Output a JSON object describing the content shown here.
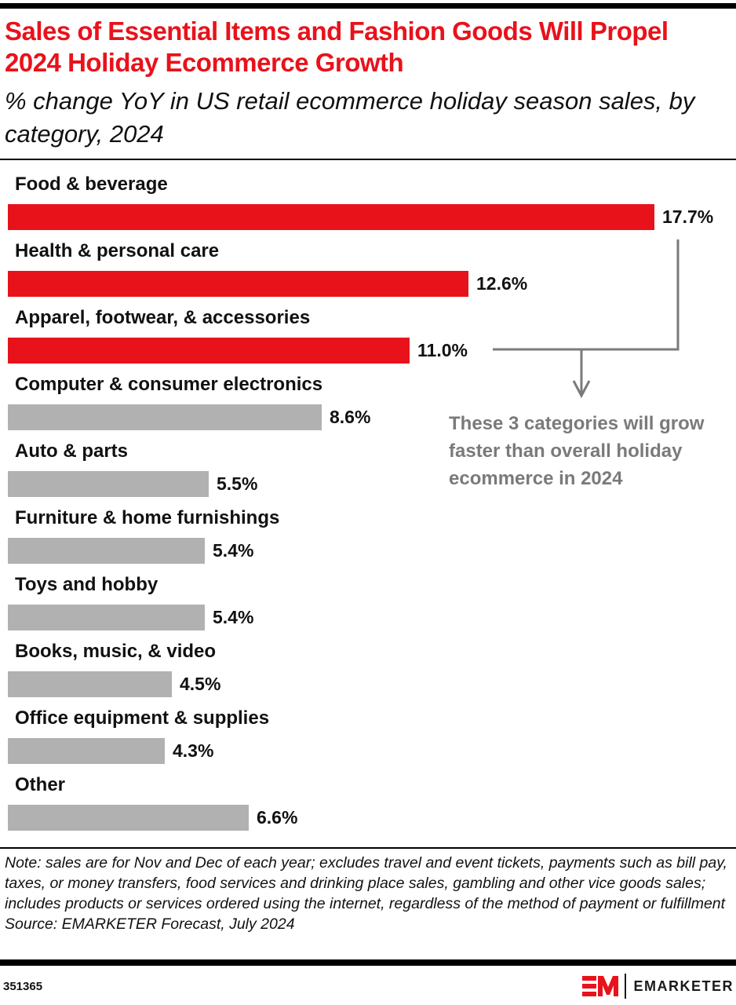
{
  "header": {
    "title": "Sales of Essential Items and Fashion Goods Will Propel 2024 Holiday Ecommerce Growth",
    "subtitle": "% change YoY in US retail ecommerce holiday season sales, by category, 2024"
  },
  "colors": {
    "highlight": "#e8121b",
    "default_bar": "#b2b1b1",
    "annotation": "#7a7a7a"
  },
  "chart_data": {
    "type": "bar",
    "orientation": "horizontal",
    "title": "Sales of Essential Items and Fashion Goods Will Propel 2024 Holiday Ecommerce Growth",
    "subtitle": "% change YoY in US retail ecommerce holiday season sales, by category, 2024",
    "xlabel": "",
    "ylabel": "",
    "xlim": [
      0,
      17.7
    ],
    "grid": false,
    "categories": [
      "Food & beverage",
      "Health & personal care",
      "Apparel, footwear, & accessories",
      "Computer & consumer electronics",
      "Auto & parts",
      "Furniture & home furnishings",
      "Toys and hobby",
      "Books, music, & video",
      "Office equipment & supplies",
      "Other"
    ],
    "values": [
      17.7,
      12.6,
      11.0,
      8.6,
      5.5,
      5.4,
      5.4,
      4.5,
      4.3,
      6.6
    ],
    "value_labels": [
      "17.7%",
      "12.6%",
      "11.0%",
      "8.6%",
      "5.5%",
      "5.4%",
      "5.4%",
      "4.5%",
      "4.3%",
      "6.6%"
    ],
    "highlighted": [
      true,
      true,
      true,
      false,
      false,
      false,
      false,
      false,
      false,
      false
    ],
    "annotation": "These 3 categories will grow faster than overall holiday ecommerce in 2024"
  },
  "footer": {
    "note": "Note: sales are for Nov and Dec of each year; excludes travel and event tickets, payments such as bill pay, taxes, or money transfers, food services and drinking place sales, gambling and other vice goods sales; includes products or services ordered using the internet, regardless of the method of payment or fulfillment",
    "source": "Source: EMARKETER Forecast, July 2024",
    "chart_id": "351365",
    "logo_text": "EMARKETER",
    "logo_icon": "em-logo-icon"
  }
}
